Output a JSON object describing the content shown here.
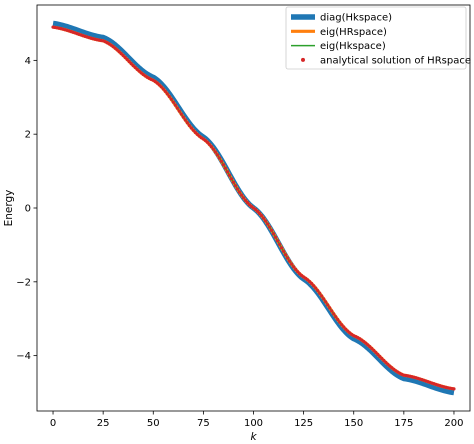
{
  "chart_data": {
    "type": "line",
    "xlabel": "k",
    "ylabel": "Energy",
    "xlim": [
      -8,
      208
    ],
    "ylim": [
      -5.5,
      5.5
    ],
    "x_ticks": [
      0,
      25,
      50,
      75,
      100,
      125,
      150,
      175,
      200
    ],
    "y_ticks": [
      -4,
      -2,
      0,
      2,
      4
    ],
    "x_tick_labels": [
      "0",
      "25",
      "50",
      "75",
      "100",
      "125",
      "150",
      "175",
      "200"
    ],
    "y_tick_labels": [
      "−4",
      "−2",
      "0",
      "2",
      "4"
    ],
    "grid": false,
    "legend_position": "top-right",
    "series": [
      {
        "name": "diag(Hkspace)",
        "style": "line",
        "color": "#1f77b4",
        "width": "thick",
        "x": [
          0,
          25,
          50,
          75,
          100,
          125,
          150,
          175,
          200
        ],
        "y": [
          5.0,
          4.62,
          3.54,
          1.92,
          0.0,
          -1.92,
          -3.54,
          -4.62,
          -5.0
        ]
      },
      {
        "name": "eig(HRspace)",
        "style": "line",
        "color": "#ff7f0e",
        "width": "medium",
        "x": [
          0,
          25,
          50,
          75,
          100,
          125,
          150,
          175,
          200
        ],
        "y": [
          4.9,
          4.53,
          3.46,
          1.87,
          0.0,
          -1.87,
          -3.46,
          -4.53,
          -4.9
        ]
      },
      {
        "name": "eig(Hkspace)",
        "style": "line",
        "color": "#2ca02c",
        "width": "thin",
        "x": [
          0,
          25,
          50,
          75,
          100,
          125,
          150,
          175,
          200
        ],
        "y": [
          4.9,
          4.53,
          3.46,
          1.87,
          0.0,
          -1.87,
          -3.46,
          -4.53,
          -4.9
        ]
      },
      {
        "name": "analytical solution of HRspace",
        "style": "scatter",
        "color": "#d62728",
        "width": "thin",
        "x": [
          0,
          25,
          50,
          75,
          100,
          125,
          150,
          175,
          200
        ],
        "y": [
          4.9,
          4.53,
          3.46,
          1.87,
          0.0,
          -1.87,
          -3.46,
          -4.53,
          -4.9
        ]
      }
    ]
  }
}
